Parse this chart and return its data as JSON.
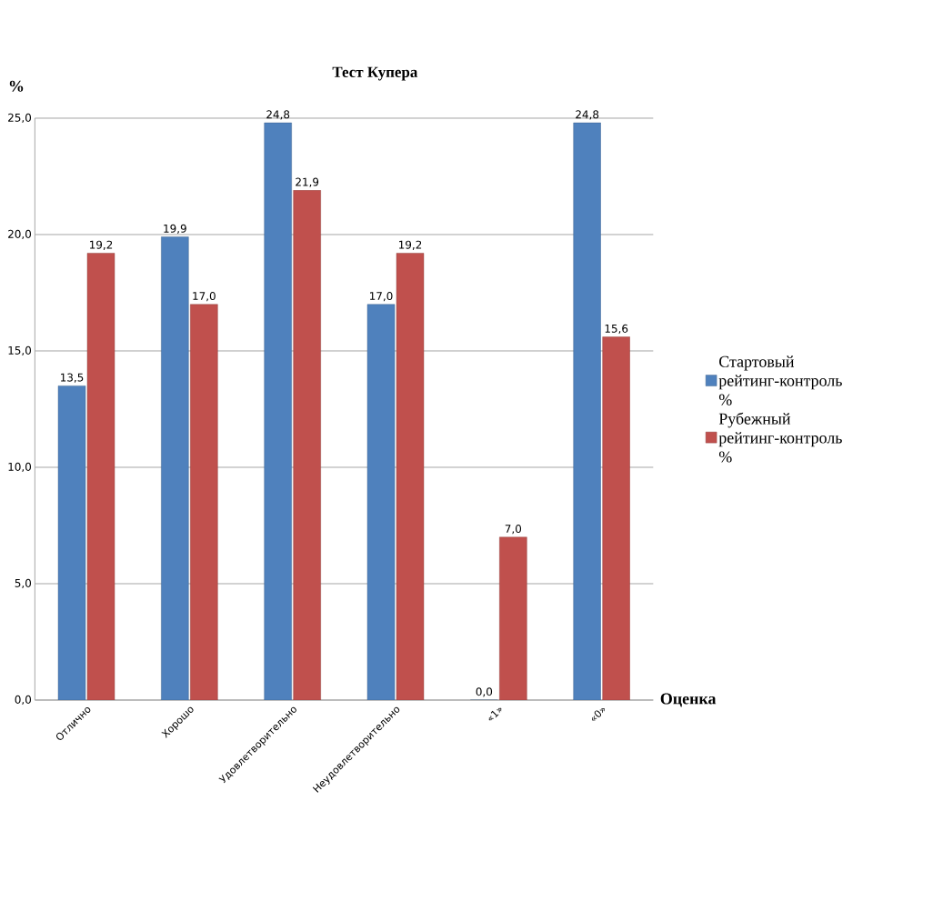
{
  "chart_data": {
    "type": "bar",
    "title": "Тест Купера",
    "xlabel": "Оценка",
    "ylabel": "%",
    "categories": [
      "Отлично",
      "Хорошо",
      "Удовлетворительно",
      "Неудовлетворительно",
      "«1»",
      "«0»"
    ],
    "series": [
      {
        "name": "Стартовый рейтинг-контроль %",
        "color": "#4f81bd",
        "values": [
          13.5,
          19.9,
          24.8,
          17.0,
          0.0,
          24.8
        ],
        "value_labels": [
          "13,5",
          "19,9",
          "24,8",
          "17,0",
          "0,0",
          "24,8"
        ]
      },
      {
        "name": "Рубежный рейтинг-контроль %",
        "color": "#c0504d",
        "values": [
          19.2,
          17.0,
          21.9,
          19.2,
          7.0,
          15.6
        ],
        "value_labels": [
          "19,2",
          "17,0",
          "21,9",
          "19,2",
          "7,0",
          "15,6"
        ]
      }
    ],
    "ylim": [
      0,
      25
    ],
    "yticks": [
      {
        "value": 0,
        "label": "0,0"
      },
      {
        "value": 5,
        "label": "5,0"
      },
      {
        "value": 10,
        "label": "10,0"
      },
      {
        "value": 15,
        "label": "15,0"
      },
      {
        "value": 20,
        "label": "20,0"
      },
      {
        "value": 25,
        "label": "25,0"
      }
    ],
    "grid": "y",
    "legend": "right"
  }
}
